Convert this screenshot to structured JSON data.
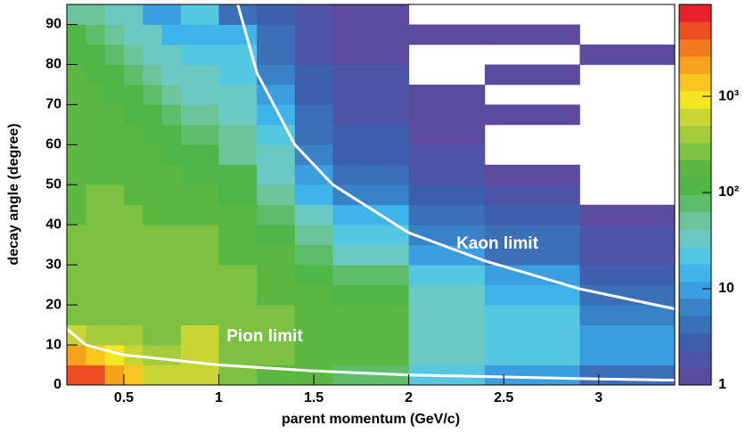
{
  "chart_data": {
    "type": "heatmap",
    "xlabel": "parent momentum (GeV/c)",
    "ylabel": "decay angle (degree)",
    "xbins": [
      0.2,
      0.3,
      0.4,
      0.5,
      0.6,
      0.7,
      0.8,
      1.0,
      1.2,
      1.4,
      1.6,
      2.0,
      2.4,
      2.9,
      3.4
    ],
    "ybins": [
      0,
      5,
      10,
      15,
      20,
      25,
      30,
      35,
      40,
      45,
      50,
      55,
      60,
      65,
      70,
      75,
      80,
      85,
      90,
      95
    ],
    "z": [
      [
        5000,
        2000,
        600,
        300,
        250,
        250,
        250,
        250,
        200,
        200,
        200,
        200,
        200,
        180,
        150,
        150,
        120,
        100,
        50
      ],
      [
        4000,
        1500,
        400,
        300,
        300,
        300,
        300,
        250,
        250,
        250,
        200,
        200,
        200,
        180,
        150,
        120,
        100,
        80,
        50
      ],
      [
        2500,
        800,
        350,
        300,
        300,
        300,
        300,
        250,
        250,
        250,
        200,
        200,
        180,
        150,
        120,
        100,
        80,
        60,
        40
      ],
      [
        1200,
        500,
        350,
        300,
        300,
        300,
        250,
        250,
        250,
        200,
        200,
        180,
        150,
        120,
        100,
        80,
        60,
        40,
        30
      ],
      [
        700,
        400,
        300,
        300,
        300,
        280,
        250,
        250,
        200,
        200,
        180,
        150,
        120,
        100,
        80,
        60,
        40,
        30,
        10
      ],
      [
        600,
        400,
        300,
        300,
        300,
        250,
        250,
        250,
        200,
        180,
        150,
        120,
        100,
        80,
        60,
        40,
        30,
        15,
        10
      ],
      [
        500,
        500,
        500,
        300,
        300,
        250,
        250,
        250,
        200,
        150,
        120,
        100,
        80,
        60,
        40,
        30,
        20,
        15,
        20
      ],
      [
        300,
        300,
        300,
        300,
        250,
        250,
        200,
        200,
        150,
        120,
        100,
        60,
        50,
        40,
        30,
        25,
        20,
        15,
        5
      ],
      [
        200,
        250,
        250,
        250,
        200,
        200,
        150,
        120,
        80,
        60,
        40,
        30,
        20,
        12,
        8,
        6,
        5,
        4,
        3
      ],
      [
        150,
        200,
        200,
        200,
        150,
        120,
        80,
        50,
        30,
        15,
        8,
        6,
        5,
        4,
        3,
        3,
        2,
        2,
        2
      ],
      [
        80,
        150,
        150,
        150,
        120,
        80,
        40,
        25,
        12,
        6,
        4,
        3,
        3,
        2,
        2,
        2,
        1,
        1,
        1
      ],
      [
        20,
        40,
        40,
        40,
        30,
        20,
        10,
        6,
        4,
        3,
        2,
        2,
        1,
        1,
        1,
        null,
        null,
        1,
        null
      ],
      [
        10,
        20,
        25,
        20,
        12,
        8,
        5,
        4,
        3,
        2,
        1,
        null,
        null,
        1,
        null,
        1,
        null,
        1,
        null
      ],
      [
        5,
        8,
        8,
        6,
        4,
        3,
        2,
        2,
        1,
        null,
        null,
        null,
        null,
        null,
        null,
        null,
        1,
        null,
        null
      ]
    ],
    "xlim": [
      0.2,
      3.4
    ],
    "ylim": [
      0,
      95
    ],
    "zlim": [
      1,
      9000
    ],
    "xticks": [
      0.5,
      1,
      1.5,
      2,
      2.5,
      3
    ],
    "yticks": [
      0,
      10,
      20,
      30,
      40,
      50,
      60,
      70,
      80,
      90
    ],
    "zticks": [
      1,
      10,
      {
        "value": 100,
        "label": "10²"
      },
      {
        "value": 1000,
        "label": "10³"
      }
    ],
    "zscale": "log",
    "palette": [
      "#5b4a9e",
      "#4f55a6",
      "#3e5fae",
      "#3b6fb8",
      "#3a82c8",
      "#3b9ee0",
      "#3fb4ea",
      "#55c7e0",
      "#6ac9c2",
      "#6cc49a",
      "#5dbd6a",
      "#4fb648",
      "#5ab842",
      "#7cc142",
      "#a5cb3c",
      "#c9d435",
      "#f2e822",
      "#fbc520",
      "#f7a21c",
      "#f27a1f",
      "#ee4d23",
      "#e8222a"
    ],
    "lines": [
      {
        "name": "Kaon limit",
        "color": "#ffffff",
        "x": [
          1.1,
          1.2,
          1.4,
          1.6,
          2.0,
          2.4,
          2.9,
          3.4
        ],
        "y": [
          95,
          78,
          60,
          50,
          38,
          31,
          24,
          19
        ]
      },
      {
        "name": "Pion limit",
        "color": "#ffffff",
        "x": [
          0.2,
          0.3,
          0.5,
          1.0,
          1.5,
          2.0,
          3.0,
          3.4
        ],
        "y": [
          14,
          10,
          7.5,
          5,
          3.5,
          2.5,
          1.5,
          1.2
        ]
      }
    ]
  }
}
